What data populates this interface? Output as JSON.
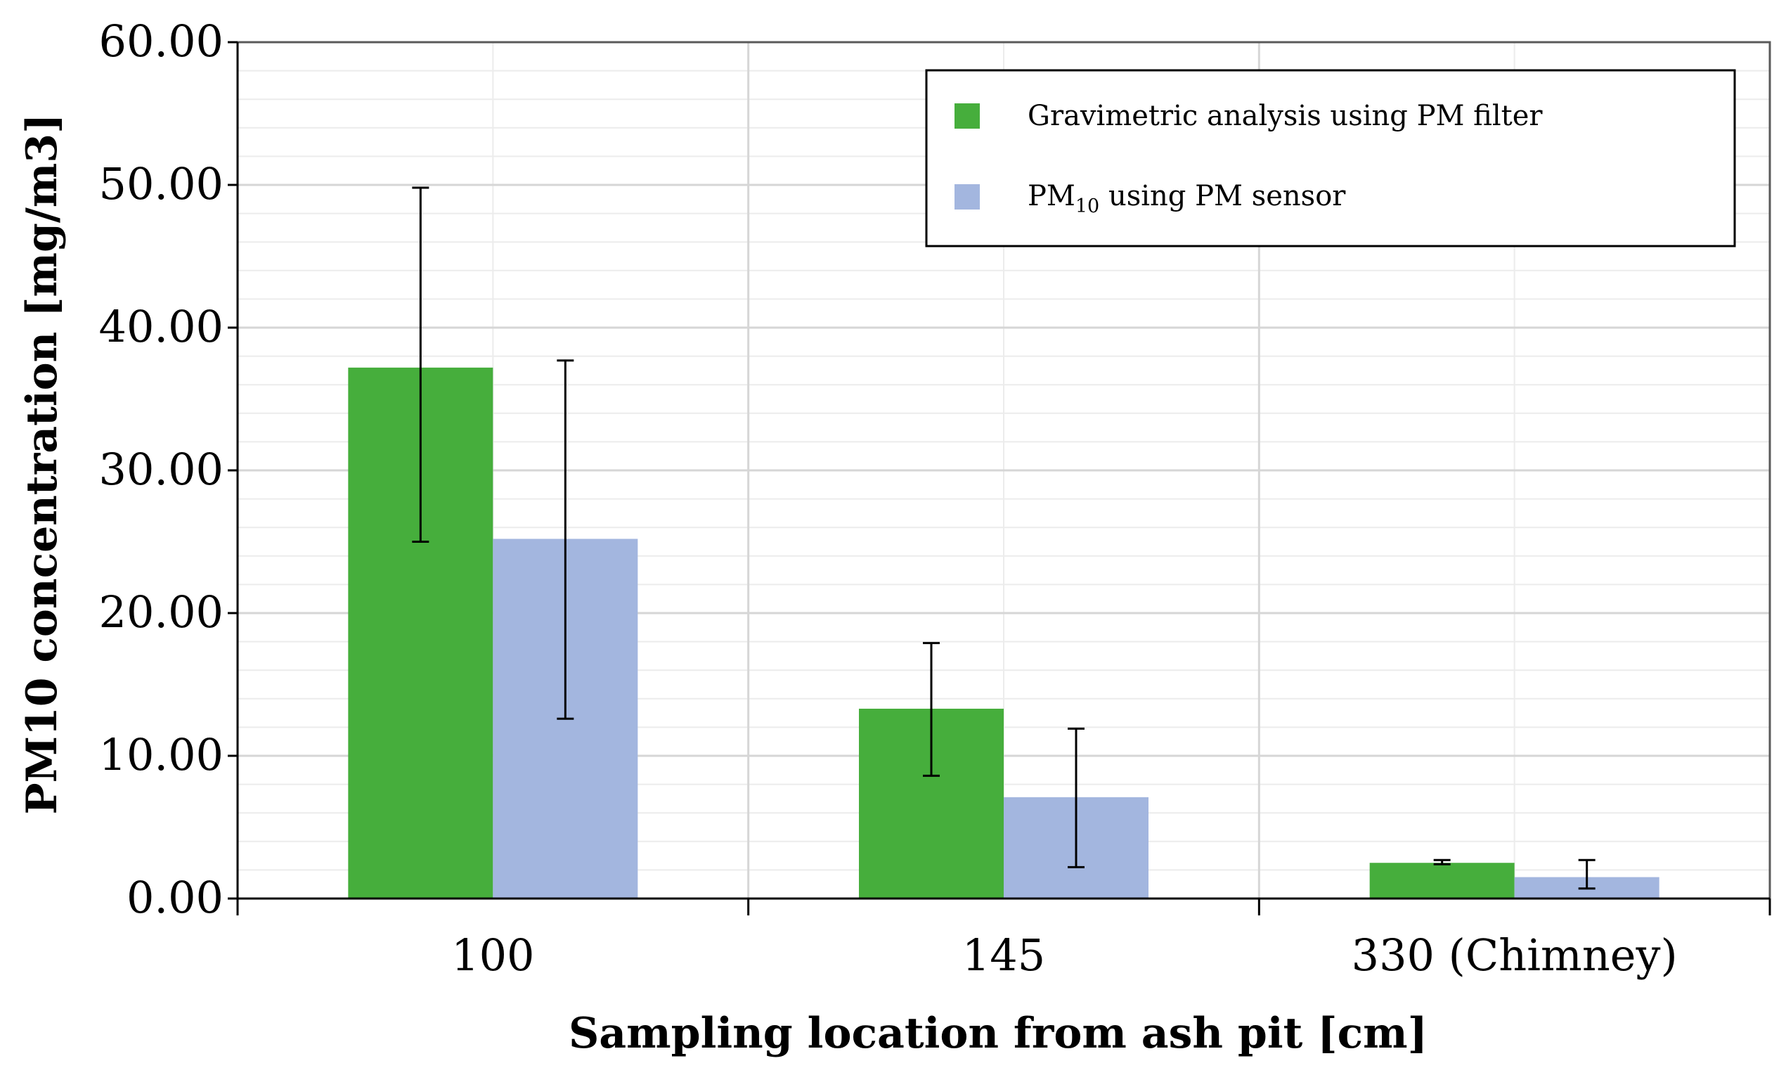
{
  "chart_data": {
    "type": "bar",
    "title": "",
    "xlabel": "Sampling location from ash pit [cm]",
    "ylabel": "PM10 concentration [mg/m3]",
    "categories": [
      "100",
      "145",
      "330 (Chimney)"
    ],
    "ylim": [
      0,
      60
    ],
    "yticks": [
      0,
      10,
      20,
      30,
      40,
      50,
      60
    ],
    "ytick_labels": [
      "0.00",
      "10.00",
      "20.00",
      "30.00",
      "40.00",
      "50.00",
      "60.00"
    ],
    "minor_step": 2,
    "grid": true,
    "legend_position": "top-right",
    "series": [
      {
        "name": "Gravimetric analysis using PM filter",
        "legend_main": "Gravimetric analysis using PM filter",
        "legend_sub": "",
        "legend_rest": "",
        "color": "#46ae3c",
        "values": [
          37.2,
          13.3,
          2.5
        ],
        "err_low": [
          25.0,
          8.6,
          2.4
        ],
        "err_high": [
          49.8,
          17.9,
          2.7
        ]
      },
      {
        "name": "PM10 using PM sensor",
        "legend_main": "PM",
        "legend_sub": "10",
        "legend_rest": " using PM sensor",
        "color": "#a3b6df",
        "values": [
          25.2,
          7.1,
          1.5
        ],
        "err_low": [
          12.6,
          2.2,
          0.7
        ],
        "err_high": [
          37.7,
          11.9,
          2.7
        ]
      }
    ]
  }
}
